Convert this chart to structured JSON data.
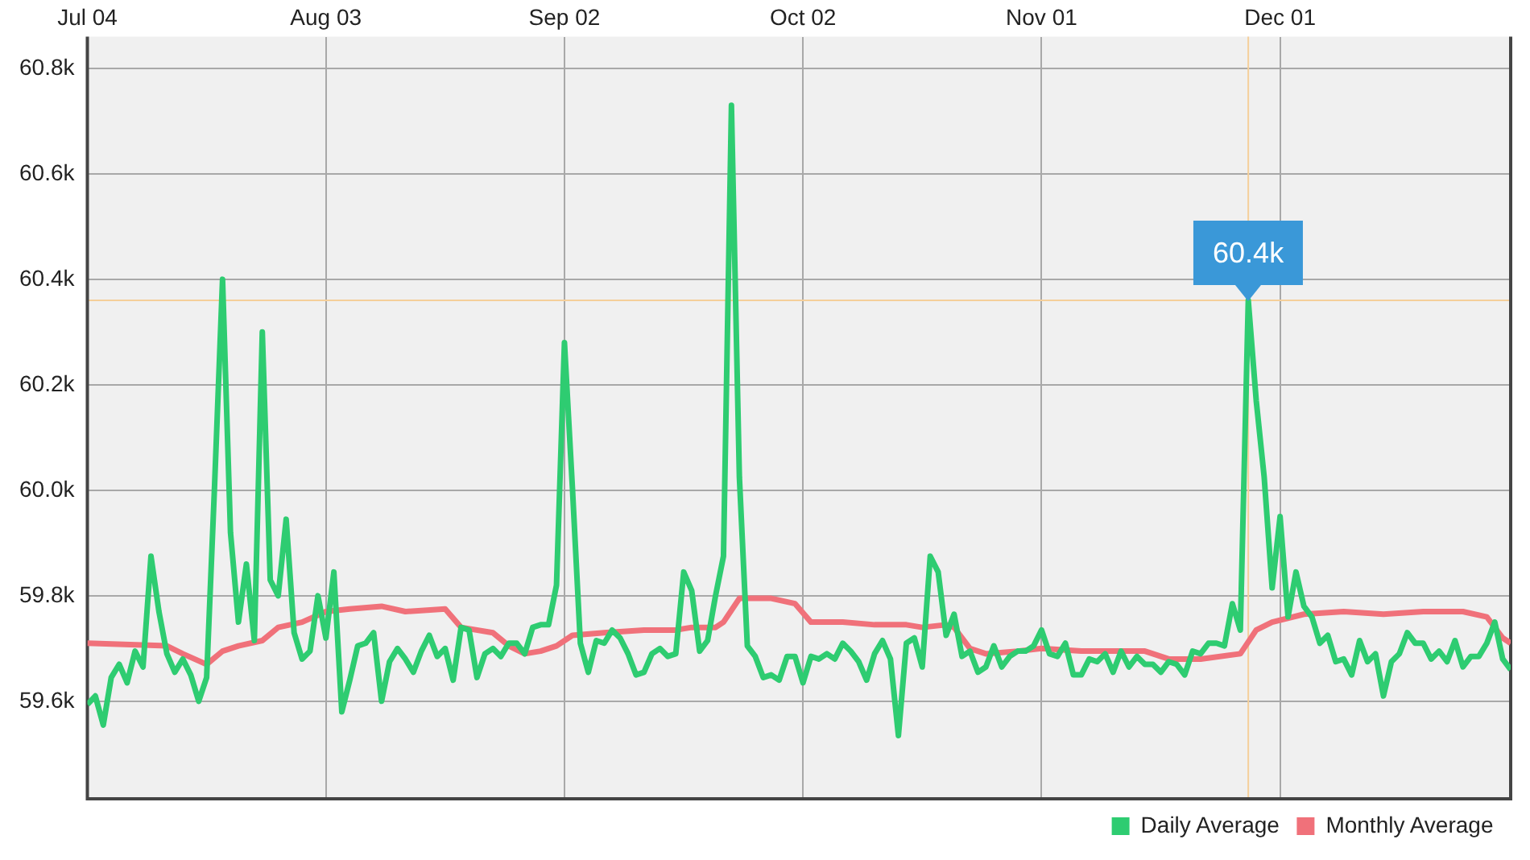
{
  "chart_data": {
    "type": "line",
    "x": [
      "--07-04",
      "--07-05",
      "--07-06",
      "--07-07",
      "--07-08",
      "--07-09",
      "--07-10",
      "--07-11",
      "--07-12",
      "--07-13",
      "--07-14",
      "--07-15",
      "--07-16",
      "--07-17",
      "--07-18",
      "--07-19",
      "--07-20",
      "--07-21",
      "--07-22",
      "--07-23",
      "--07-24",
      "--07-25",
      "--07-26",
      "--07-27",
      "--07-28",
      "--07-29",
      "--07-30",
      "--07-31",
      "--08-01",
      "--08-02",
      "--08-03",
      "--08-04",
      "--08-05",
      "--08-06",
      "--08-07",
      "--08-08",
      "--08-09",
      "--08-10",
      "--08-11",
      "--08-12",
      "--08-13",
      "--08-14",
      "--08-15",
      "--08-16",
      "--08-17",
      "--08-18",
      "--08-19",
      "--08-20",
      "--08-21",
      "--08-22",
      "--08-23",
      "--08-24",
      "--08-25",
      "--08-26",
      "--08-27",
      "--08-28",
      "--08-29",
      "--08-30",
      "--08-31",
      "--09-01",
      "--09-02",
      "--09-03",
      "--09-04",
      "--09-05",
      "--09-06",
      "--09-07",
      "--09-08",
      "--09-09",
      "--09-10",
      "--09-11",
      "--09-12",
      "--09-13",
      "--09-14",
      "--09-15",
      "--09-16",
      "--09-17",
      "--09-18",
      "--09-19",
      "--09-20",
      "--09-21",
      "--09-22",
      "--09-23",
      "--09-24",
      "--09-25",
      "--09-26",
      "--09-27",
      "--09-28",
      "--09-29",
      "--09-30",
      "--10-01",
      "--10-02",
      "--10-03",
      "--10-04",
      "--10-05",
      "--10-06",
      "--10-07",
      "--10-08",
      "--10-09",
      "--10-10",
      "--10-11",
      "--10-12",
      "--10-13",
      "--10-14",
      "--10-15",
      "--10-16",
      "--10-17",
      "--10-18",
      "--10-19",
      "--10-20",
      "--10-21",
      "--10-22",
      "--10-23",
      "--10-24",
      "--10-25",
      "--10-26",
      "--10-27",
      "--10-28",
      "--10-29",
      "--10-30",
      "--10-31",
      "--11-01",
      "--11-02",
      "--11-03",
      "--11-04",
      "--11-05",
      "--11-06",
      "--11-07",
      "--11-08",
      "--11-09",
      "--11-10",
      "--11-11",
      "--11-12",
      "--11-13",
      "--11-14",
      "--11-15",
      "--11-16",
      "--11-17",
      "--11-18",
      "--11-19",
      "--11-20",
      "--11-21",
      "--11-22",
      "--11-23",
      "--11-24",
      "--11-25",
      "--11-26",
      "--11-27",
      "--11-28",
      "--11-29",
      "--11-30",
      "--12-01",
      "--12-02",
      "--12-03",
      "--12-04",
      "--12-05",
      "--12-06",
      "--12-07",
      "--12-08",
      "--12-09",
      "--12-10",
      "--12-11",
      "--12-12",
      "--12-13",
      "--12-14",
      "--12-15",
      "--12-16",
      "--12-17",
      "--12-18",
      "--12-19",
      "--12-20",
      "--12-21",
      "--12-22",
      "--12-23",
      "--12-24",
      "--12-25",
      "--12-26",
      "--12-27",
      "--12-28",
      "--12-29",
      "--12-30"
    ],
    "series": [
      {
        "name": "Daily Average",
        "color": "#2ecc71",
        "values": [
          59594,
          59610,
          59555,
          59645,
          59670,
          59635,
          59695,
          59665,
          59875,
          59770,
          59690,
          59655,
          59680,
          59650,
          59600,
          59645,
          60010,
          60400,
          59920,
          59750,
          59860,
          59715,
          60300,
          59830,
          59800,
          59945,
          59730,
          59680,
          59695,
          59800,
          59720,
          59845,
          59580,
          59640,
          59705,
          59710,
          59730,
          59600,
          59675,
          59700,
          59680,
          59655,
          59695,
          59725,
          59685,
          59700,
          59640,
          59740,
          59735,
          59645,
          59690,
          59700,
          59685,
          59710,
          59710,
          59690,
          59740,
          59745,
          59745,
          59820,
          60280,
          60005,
          59710,
          59655,
          59715,
          59710,
          59735,
          59720,
          59690,
          59650,
          59655,
          59690,
          59700,
          59685,
          59690,
          59845,
          59810,
          59695,
          59715,
          59800,
          59875,
          60730,
          60025,
          59705,
          59685,
          59645,
          59650,
          59640,
          59685,
          59685,
          59635,
          59685,
          59680,
          59690,
          59680,
          59710,
          59695,
          59675,
          59640,
          59690,
          59715,
          59680,
          59535,
          59710,
          59720,
          59665,
          59875,
          59845,
          59725,
          59765,
          59685,
          59695,
          59655,
          59665,
          59705,
          59665,
          59685,
          59695,
          59695,
          59705,
          59735,
          59690,
          59685,
          59710,
          59650,
          59650,
          59680,
          59675,
          59690,
          59655,
          59695,
          59665,
          59685,
          59670,
          59670,
          59655,
          59675,
          59670,
          59650,
          59695,
          59690,
          59710,
          59710,
          59705,
          59785,
          59735,
          60360,
          60170,
          60025,
          59815,
          59950,
          59760,
          59845,
          59780,
          59760,
          59710,
          59725,
          59675,
          59680,
          59650,
          59715,
          59675,
          59690,
          59610,
          59675,
          59690,
          59730,
          59710,
          59710,
          59680,
          59695,
          59675,
          59715,
          59665,
          59685,
          59685,
          59710,
          59750,
          59680,
          59660
        ]
      },
      {
        "name": "Monthly Average",
        "color": "#f0717a",
        "x": [
          "--07-04",
          "--07-14",
          "--07-16",
          "--07-19",
          "--07-21",
          "--07-23",
          "--07-26",
          "--07-28",
          "--07-31",
          "--08-03",
          "--08-06",
          "--08-10",
          "--08-13",
          "--08-18",
          "--08-20",
          "--08-24",
          "--08-26",
          "--08-28",
          "--08-30",
          "--09-01",
          "--09-03",
          "--09-07",
          "--09-12",
          "--09-16",
          "--09-18",
          "--09-21",
          "--09-22",
          "--09-24",
          "--09-28",
          "--10-01",
          "--10-03",
          "--10-07",
          "--10-11",
          "--10-15",
          "--10-17",
          "--10-20",
          "--10-21",
          "--10-23",
          "--10-25",
          "--10-29",
          "--11-01",
          "--11-06",
          "--11-11",
          "--11-14",
          "--11-17",
          "--11-21",
          "--11-26",
          "--11-28",
          "--11-30",
          "--12-04",
          "--12-09",
          "--12-14",
          "--12-19",
          "--12-24",
          "--12-27",
          "--12-29",
          "--12-30"
        ],
        "values": [
          59710,
          59705,
          59690,
          59670,
          59695,
          59705,
          59715,
          59740,
          59750,
          59770,
          59775,
          59780,
          59770,
          59775,
          59740,
          59730,
          59705,
          59690,
          59695,
          59705,
          59725,
          59730,
          59735,
          59735,
          59740,
          59740,
          59750,
          59795,
          59795,
          59785,
          59750,
          59750,
          59745,
          59745,
          59740,
          59745,
          59740,
          59700,
          59690,
          59695,
          59700,
          59695,
          59695,
          59695,
          59680,
          59680,
          59690,
          59735,
          59750,
          59765,
          59770,
          59765,
          59770,
          59770,
          59760,
          59720,
          59710
        ]
      }
    ],
    "xlim": [
      "--07-04",
      "--12-30"
    ],
    "xticks": [
      {
        "value": "--07-04",
        "label": "Jul 04"
      },
      {
        "value": "--08-03",
        "label": "Aug 03"
      },
      {
        "value": "--09-02",
        "label": "Sep 02"
      },
      {
        "value": "--10-02",
        "label": "Oct 02"
      },
      {
        "value": "--11-01",
        "label": "Nov 01"
      },
      {
        "value": "--12-01",
        "label": "Dec 01"
      }
    ],
    "ylim": [
      59415,
      60860
    ],
    "yticks": [
      {
        "value": 59600,
        "label": "59.6k"
      },
      {
        "value": 59800,
        "label": "59.8k"
      },
      {
        "value": 60000,
        "label": "60.0k"
      },
      {
        "value": 60200,
        "label": "60.2k"
      },
      {
        "value": 60400,
        "label": "60.4k"
      },
      {
        "value": 60600,
        "label": "60.6k"
      },
      {
        "value": 60800,
        "label": "60.8k"
      }
    ],
    "ref_lines": [
      {
        "axis": "x",
        "value": "--11-27",
        "color": "#f5cf9a"
      },
      {
        "axis": "y",
        "value": 60360,
        "color": "#f5cf9a"
      }
    ],
    "annotations": [
      {
        "text": "60.4k",
        "x": "--11-27",
        "y": 60360
      }
    ],
    "grid": true,
    "legend": "bottom right",
    "marker": "none",
    "line_style": "solid"
  }
}
